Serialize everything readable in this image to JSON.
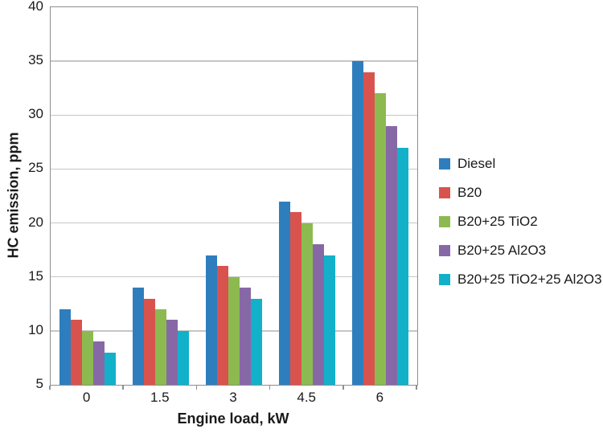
{
  "figure": {
    "background": "#ffffff",
    "plot_border_color": "#8e8e8e",
    "gridline_color": "#c6c6c6",
    "tick_color": "#8e8e8e",
    "text_color": "#1a1a1a"
  },
  "chart_data": {
    "type": "bar",
    "title": "",
    "xlabel": "Engine load, kW",
    "ylabel": "HC emission, ppm",
    "categories": [
      "0",
      "1.5",
      "3",
      "4.5",
      "6"
    ],
    "series": [
      {
        "name": "Diesel",
        "color": "#2e7ebd",
        "values": [
          12,
          14,
          17,
          22,
          35
        ]
      },
      {
        "name": "B20",
        "color": "#d9534e",
        "values": [
          11,
          13,
          16,
          21,
          34
        ]
      },
      {
        "name": "B20+25 TiO2",
        "color": "#8cba50",
        "values": [
          10,
          12,
          15,
          20,
          32
        ]
      },
      {
        "name": "B20+25 Al2O3",
        "color": "#8768a7",
        "values": [
          9,
          11,
          14,
          18,
          29
        ]
      },
      {
        "name": "B20+25 TiO2+25 Al2O3",
        "color": "#12b1c9",
        "values": [
          8,
          10,
          13,
          17,
          27
        ]
      }
    ],
    "ylim": [
      5,
      40
    ],
    "ytick_step": 5,
    "ytick_labels": [
      "5",
      "10",
      "15",
      "20",
      "25",
      "30",
      "35",
      "40"
    ],
    "grid": "horizontal",
    "legend_position": "right-middle"
  }
}
